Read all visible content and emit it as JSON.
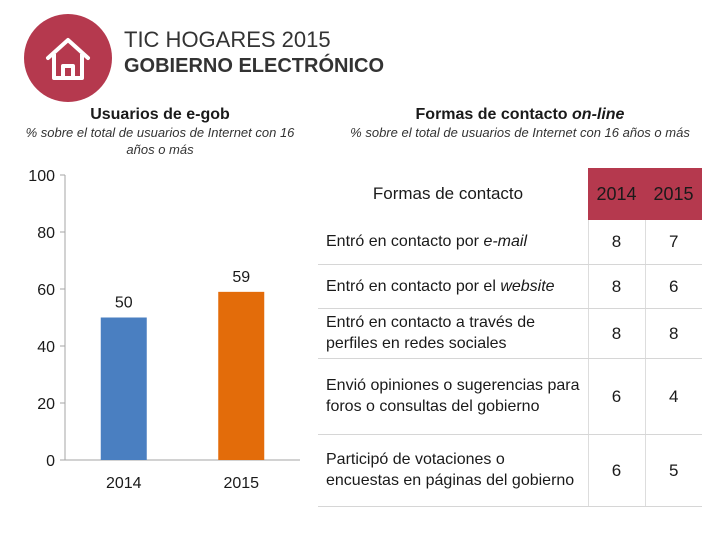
{
  "header": {
    "title_line1": "TIC HOGARES 2015",
    "title_line2": "GOBIERNO ELECTRÓNICO",
    "icon": "house-icon",
    "brand_color": "#b5394e"
  },
  "left_panel": {
    "title": "Usuarios de e-gob",
    "subtitle": "% sobre el total de usuarios de Internet con 16 años o más"
  },
  "right_panel": {
    "title_prefix": "Formas de contacto ",
    "title_emphasis": "on-line",
    "subtitle": "% sobre el total de usuarios de Internet con 16 años o más"
  },
  "chart_data": {
    "type": "bar",
    "categories": [
      "2014",
      "2015"
    ],
    "values": [
      50,
      59
    ],
    "colors": [
      "#4a7fc1",
      "#e36c0a"
    ],
    "ylim": [
      0,
      100
    ],
    "yticks": [
      0,
      20,
      40,
      60,
      80,
      100
    ],
    "grid": false,
    "xlabel": "",
    "ylabel": ""
  },
  "table": {
    "header": {
      "label": "Formas de contacto",
      "col1": "2014",
      "col2": "2015"
    },
    "header_color": "#b5394e",
    "rows": [
      {
        "pre": "Entró en contacto por ",
        "em": "e-mail",
        "v2014": "8",
        "v2015": "7"
      },
      {
        "pre": "Entró en contacto por el ",
        "em": "website",
        "v2014": "8",
        "v2015": "6"
      },
      {
        "pre": "Entró en contacto a través de perfiles en redes sociales",
        "em": "",
        "v2014": "8",
        "v2015": "8"
      },
      {
        "pre": "Envió opiniones o sugerencias para foros o consultas del gobierno",
        "em": "",
        "v2014": "6",
        "v2015": "4"
      },
      {
        "pre": "Participó de votaciones o encuestas en páginas del gobierno",
        "em": "",
        "v2014": "6",
        "v2015": "5"
      }
    ]
  }
}
